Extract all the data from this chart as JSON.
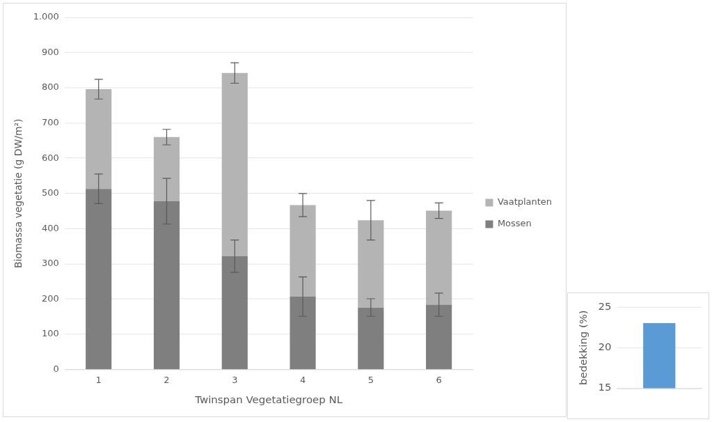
{
  "chart_data": [
    {
      "type": "bar",
      "stacked": true,
      "xlabel": "Twinspan Vegetatiegroep NL",
      "ylabel": "Biomassa vegetatie (g DW/m²)",
      "categories": [
        "1",
        "2",
        "3",
        "4",
        "5",
        "6"
      ],
      "series": [
        {
          "name": "Mossen",
          "color": "#7f7f7f",
          "values": [
            513,
            478,
            322,
            207,
            176,
            184
          ],
          "errors": [
            42,
            65,
            46,
            56,
            25,
            33
          ]
        },
        {
          "name": "Vaatplanten",
          "color": "#b4b4b4",
          "values": [
            283,
            182,
            520,
            260,
            248,
            267
          ],
          "errors": [
            28,
            22,
            29,
            33,
            56,
            22
          ]
        }
      ],
      "ylim": [
        0,
        1000
      ],
      "yticks": [
        0,
        100,
        200,
        300,
        400,
        500,
        600,
        700,
        800,
        900,
        {
          "value": 1000,
          "label": "1.000"
        }
      ],
      "grid": "y",
      "legend": "right"
    },
    {
      "type": "bar",
      "ylabel": "bedekking (%)",
      "categories": [
        null
      ],
      "values": [
        23
      ],
      "color": "#5b9bd5",
      "ylim": [
        15,
        25
      ],
      "yticks": [
        15,
        20,
        25
      ],
      "grid": "y"
    }
  ]
}
